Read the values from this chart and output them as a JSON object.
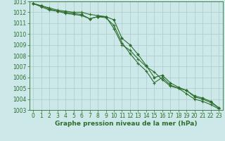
{
  "xlabel": "Graphe pression niveau de la mer (hPa)",
  "background_color": "#cce8e8",
  "grid_color": "#aacccc",
  "line_color": "#2d6e2d",
  "x_values": [
    0,
    1,
    2,
    3,
    4,
    5,
    6,
    7,
    8,
    9,
    10,
    11,
    12,
    13,
    14,
    15,
    16,
    17,
    18,
    19,
    20,
    21,
    22,
    23
  ],
  "series": [
    [
      1012.8,
      1012.6,
      1012.4,
      1012.2,
      1012.1,
      1012.0,
      1012.0,
      1011.8,
      1011.7,
      1011.6,
      1010.5,
      1009.0,
      1008.5,
      1007.7,
      1007.0,
      1006.5,
      1005.8,
      1005.2,
      1005.0,
      1004.8,
      1004.2,
      1004.0,
      1003.7,
      1003.2
    ],
    [
      1012.8,
      1012.5,
      1012.2,
      1012.1,
      1011.9,
      1011.8,
      1011.7,
      1011.4,
      1011.6,
      1011.5,
      1010.8,
      1009.2,
      1008.2,
      1007.3,
      1006.6,
      1005.5,
      1006.0,
      1005.3,
      1005.0,
      1004.5,
      1004.0,
      1003.8,
      1003.5,
      1003.1
    ],
    [
      1012.8,
      1012.6,
      1012.3,
      1012.1,
      1012.0,
      1011.9,
      1011.8,
      1011.4,
      1011.6,
      1011.6,
      1011.3,
      1009.6,
      1009.0,
      1008.1,
      1007.1,
      1006.0,
      1006.2,
      1005.5,
      1005.1,
      1004.8,
      1004.3,
      1004.1,
      1003.8,
      1003.2
    ]
  ],
  "ylim": [
    1003,
    1013
  ],
  "yticks": [
    1003,
    1004,
    1005,
    1006,
    1007,
    1008,
    1009,
    1010,
    1011,
    1012,
    1013
  ],
  "xticks": [
    0,
    1,
    2,
    3,
    4,
    5,
    6,
    7,
    8,
    9,
    10,
    11,
    12,
    13,
    14,
    15,
    16,
    17,
    18,
    19,
    20,
    21,
    22,
    23
  ],
  "tick_fontsize": 5.5,
  "label_fontsize": 6.5
}
